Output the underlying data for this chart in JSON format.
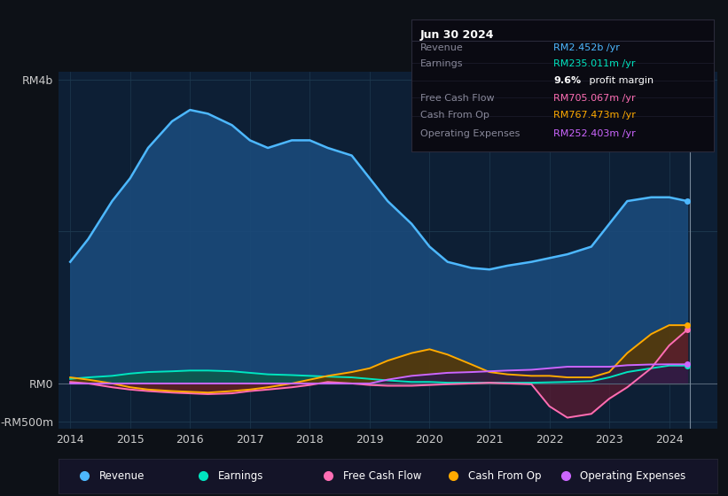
{
  "background_color": "#0d1117",
  "plot_bg_color": "#0d1f35",
  "title_box": {
    "date": "Jun 30 2024",
    "rows": [
      {
        "label": "Revenue",
        "value": "RM2.452b /yr",
        "value_color": "#4db8ff"
      },
      {
        "label": "Earnings",
        "value": "RM235.011m /yr",
        "value_color": "#00e5c0"
      },
      {
        "label": "",
        "value": "9.6% profit margin",
        "value_color": "#ffffff"
      },
      {
        "label": "Free Cash Flow",
        "value": "RM705.067m /yr",
        "value_color": "#ff6eb4"
      },
      {
        "label": "Cash From Op",
        "value": "RM767.473m /yr",
        "value_color": "#ffaa00"
      },
      {
        "label": "Operating Expenses",
        "value": "RM252.403m /yr",
        "value_color": "#cc66ff"
      }
    ]
  },
  "xticklabels": [
    "2014",
    "2015",
    "2016",
    "2017",
    "2018",
    "2019",
    "2020",
    "2021",
    "2022",
    "2023",
    "2024"
  ],
  "legend": [
    {
      "label": "Revenue",
      "color": "#4db8ff"
    },
    {
      "label": "Earnings",
      "color": "#00e5c0"
    },
    {
      "label": "Free Cash Flow",
      "color": "#ff6eb4"
    },
    {
      "label": "Cash From Op",
      "color": "#ffaa00"
    },
    {
      "label": "Operating Expenses",
      "color": "#cc66ff"
    }
  ],
  "series": {
    "x": [
      2014.0,
      2014.3,
      2014.7,
      2015.0,
      2015.3,
      2015.7,
      2016.0,
      2016.3,
      2016.7,
      2017.0,
      2017.3,
      2017.7,
      2018.0,
      2018.3,
      2018.7,
      2019.0,
      2019.3,
      2019.7,
      2020.0,
      2020.3,
      2020.7,
      2021.0,
      2021.3,
      2021.7,
      2022.0,
      2022.3,
      2022.7,
      2023.0,
      2023.3,
      2023.7,
      2024.0,
      2024.3
    ],
    "revenue": [
      1.6,
      1.9,
      2.4,
      2.7,
      3.1,
      3.45,
      3.6,
      3.55,
      3.4,
      3.2,
      3.1,
      3.2,
      3.2,
      3.1,
      3.0,
      2.7,
      2.4,
      2.1,
      1.8,
      1.6,
      1.52,
      1.5,
      1.55,
      1.6,
      1.65,
      1.7,
      1.8,
      2.1,
      2.4,
      2.45,
      2.45,
      2.4
    ],
    "earnings": [
      0.06,
      0.08,
      0.1,
      0.13,
      0.15,
      0.16,
      0.17,
      0.17,
      0.16,
      0.14,
      0.12,
      0.11,
      0.1,
      0.09,
      0.08,
      0.06,
      0.04,
      0.02,
      0.02,
      0.01,
      0.01,
      0.01,
      0.01,
      0.01,
      0.015,
      0.02,
      0.03,
      0.08,
      0.15,
      0.2,
      0.235,
      0.235
    ],
    "free_cash": [
      0.02,
      0.0,
      -0.05,
      -0.08,
      -0.1,
      -0.12,
      -0.13,
      -0.14,
      -0.13,
      -0.1,
      -0.08,
      -0.05,
      -0.02,
      0.02,
      0.0,
      -0.02,
      -0.03,
      -0.03,
      -0.02,
      -0.01,
      0.0,
      0.01,
      0.0,
      -0.01,
      -0.3,
      -0.45,
      -0.4,
      -0.2,
      -0.05,
      0.2,
      0.5,
      0.705
    ],
    "cash_from_op": [
      0.08,
      0.05,
      0.0,
      -0.05,
      -0.08,
      -0.1,
      -0.11,
      -0.12,
      -0.1,
      -0.08,
      -0.05,
      0.0,
      0.05,
      0.1,
      0.15,
      0.2,
      0.3,
      0.4,
      0.45,
      0.38,
      0.25,
      0.15,
      0.12,
      0.1,
      0.1,
      0.08,
      0.08,
      0.15,
      0.4,
      0.65,
      0.767,
      0.767
    ],
    "op_expenses": [
      0.0,
      0.0,
      0.0,
      0.0,
      0.0,
      0.0,
      0.0,
      0.0,
      0.0,
      0.0,
      0.0,
      0.0,
      0.0,
      0.0,
      0.0,
      0.0,
      0.05,
      0.1,
      0.12,
      0.14,
      0.15,
      0.16,
      0.17,
      0.18,
      0.2,
      0.22,
      0.22,
      0.22,
      0.24,
      0.25,
      0.252,
      0.252
    ]
  }
}
